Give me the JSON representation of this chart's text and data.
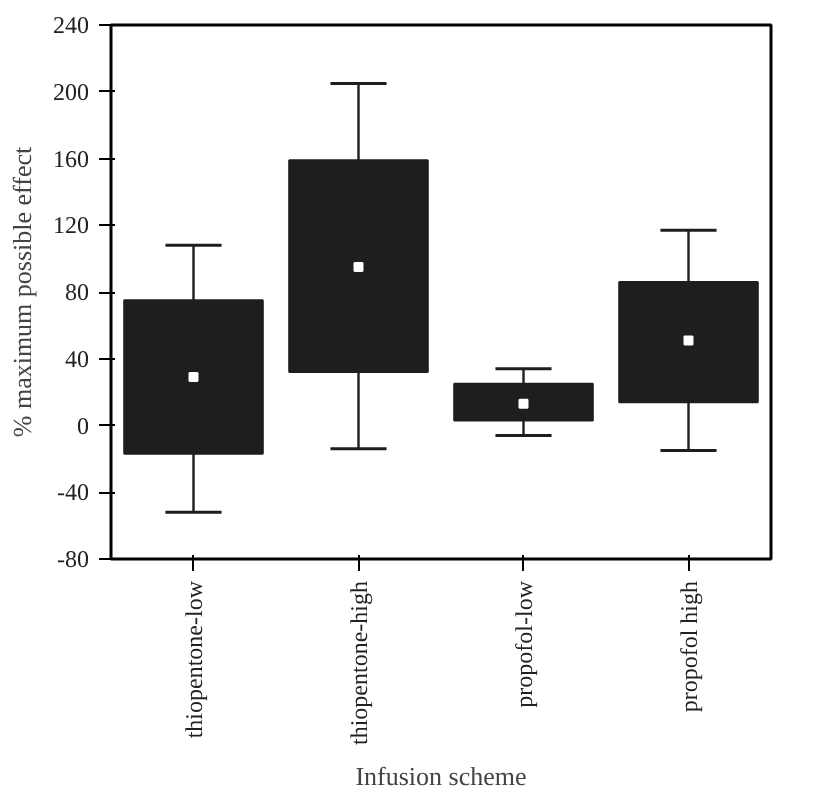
{
  "chart_data": {
    "type": "box",
    "xlabel": "Infusion scheme",
    "ylabel": "% maximum possible effect",
    "categories": [
      "thiopentone-low",
      "thiopentone-high",
      "propofol-low",
      "propofol high"
    ],
    "boxes": [
      {
        "low": -52,
        "q1": -17,
        "median": 29,
        "q3": 75,
        "high": 108
      },
      {
        "low": -14,
        "q1": 32,
        "median": 95,
        "q3": 159,
        "high": 205
      },
      {
        "low": -6,
        "q1": 3,
        "median": 13,
        "q3": 25,
        "high": 34
      },
      {
        "low": -15,
        "q1": 14,
        "median": 51,
        "q3": 86,
        "high": 117
      }
    ],
    "color": "#1e1e1e",
    "ylim": [
      -80,
      240
    ],
    "yticks": [
      -80,
      -40,
      0,
      40,
      80,
      120,
      160,
      200,
      240
    ],
    "grid": false
  }
}
